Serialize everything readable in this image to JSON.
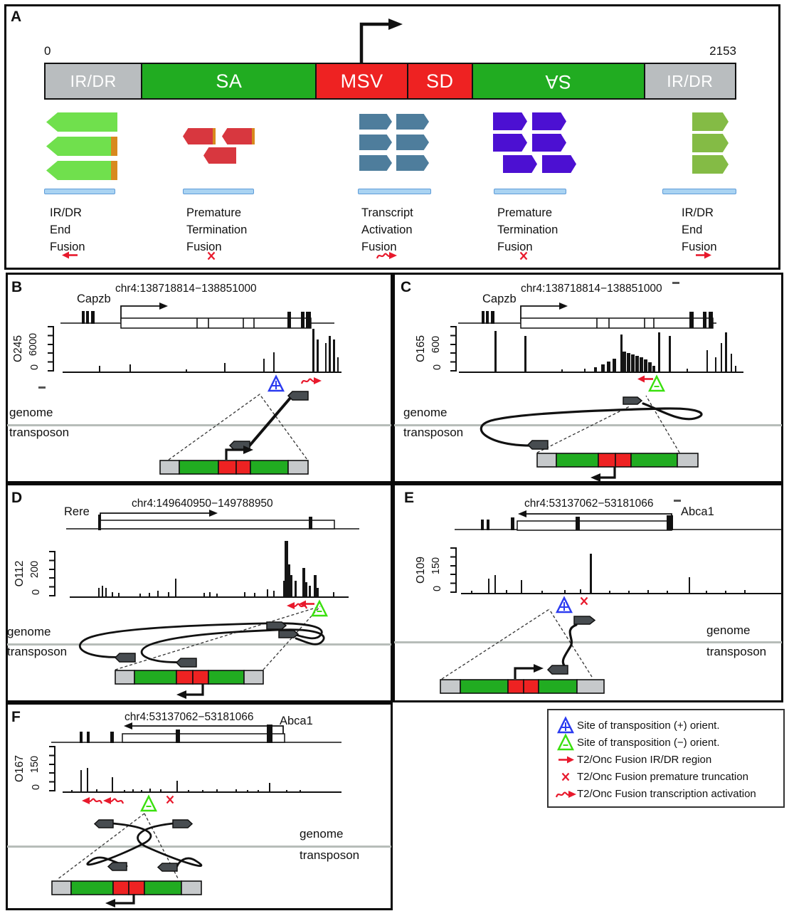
{
  "figure": {
    "panelA": {
      "letter": "A",
      "scale_start": "0",
      "scale_end": "2153",
      "segments": [
        {
          "label": "IR/DR",
          "color": "gray",
          "reversed": false
        },
        {
          "label": "SA",
          "color": "green",
          "reversed": false
        },
        {
          "label": "MSV",
          "color": "red",
          "reversed": false
        },
        {
          "label": "SD",
          "color": "red",
          "reversed": false
        },
        {
          "label": "SA",
          "color": "green",
          "reversed": true
        },
        {
          "label": "IR/DR",
          "color": "gray",
          "reversed": false
        }
      ],
      "groups": [
        {
          "name": "irdr-end-fusion-left",
          "arrow_color": "#70e04d",
          "dir": "left",
          "rows": [
            [
              {
                "edge": false
              }
            ],
            [
              {
                "edge": true
              }
            ],
            [
              {
                "edge": true
              }
            ]
          ],
          "label_lines": [
            "IR/DR",
            "End",
            "Fusion"
          ],
          "symbol": "arrow_left"
        },
        {
          "name": "premature-termination-fusion-left",
          "arrow_color": "#d8373f",
          "dir": "left",
          "rows": [
            [
              {
                "edge": true
              },
              {
                "edge": true
              }
            ],
            [
              {
                "edge": false
              }
            ]
          ],
          "label_lines": [
            "Premature",
            "Termination",
            "Fusion"
          ],
          "symbol": "x"
        },
        {
          "name": "transcript-activation-fusion",
          "arrow_color": "#4e7d9c",
          "dir": "right",
          "rows": [
            [
              {
                "edge": false
              },
              {
                "edge": false
              }
            ],
            [
              {
                "edge": false
              },
              {
                "edge": false
              }
            ],
            [
              {
                "edge": false
              },
              {
                "edge": false
              }
            ]
          ],
          "label_lines": [
            "Transcript",
            "Activation",
            "Fusion"
          ],
          "symbol": "squig_right"
        },
        {
          "name": "premature-termination-fusion-right",
          "arrow_color": "#4c10d2",
          "dir": "right",
          "rows": [
            [
              {
                "edge": false
              },
              {
                "edge": false
              }
            ],
            [
              {
                "edge": false
              },
              {
                "edge": false
              }
            ],
            [
              {
                "edge": false
              },
              {
                "edge": false
              }
            ]
          ],
          "label_lines": [
            "Premature",
            "Termination",
            "Fusion"
          ],
          "symbol": "x"
        },
        {
          "name": "irdr-end-fusion-right",
          "arrow_color": "#84bb45",
          "dir": "right",
          "rows": [
            [
              {
                "edge": false
              }
            ],
            [
              {
                "edge": false
              }
            ],
            [
              {
                "edge": false
              }
            ]
          ],
          "label_lines": [
            "IR/DR",
            "End",
            "Fusion"
          ],
          "symbol": "arrow_right"
        }
      ]
    },
    "panels": [
      {
        "letter": "B",
        "gene": "Capzb",
        "coords": "chr4:138718814−138851000",
        "sample": "O245",
        "y_max": "6000",
        "y_min": "0",
        "genome_label": "genome",
        "transposon_label": "transposon",
        "peaks": [
          [
            0.13,
            8
          ],
          [
            0.24,
            10
          ],
          [
            0.44,
            3
          ],
          [
            0.58,
            12
          ],
          [
            0.72,
            18
          ],
          [
            0.755,
            27
          ],
          [
            0.896,
            60,
            3
          ],
          [
            0.91,
            45,
            3
          ],
          [
            0.94,
            40,
            2
          ],
          [
            0.955,
            50,
            3
          ],
          [
            0.968,
            45,
            3
          ],
          [
            0.985,
            20,
            2
          ]
        ],
        "markers": [
          {
            "type": "tri_plus",
            "x": 0.77
          },
          {
            "type": "squig_right",
            "x": 0.888
          }
        ]
      },
      {
        "letter": "C",
        "gene": "Capzb",
        "coords": "chr4:138718814−138851000",
        "sample": "O165",
        "y_max": "600",
        "y_min": "0",
        "genome_label": "genome",
        "transposon_label": "transposon",
        "peaks": [
          [
            0.124,
            57,
            3
          ],
          [
            0.23,
            50,
            3
          ],
          [
            0.36,
            3
          ],
          [
            0.44,
            4
          ],
          [
            0.475,
            6,
            4
          ],
          [
            0.5,
            10,
            5
          ],
          [
            0.52,
            14,
            5
          ],
          [
            0.54,
            18,
            5
          ],
          [
            0.5675,
            52,
            3
          ],
          [
            0.575,
            28,
            5
          ],
          [
            0.59,
            26,
            5
          ],
          [
            0.605,
            24,
            5
          ],
          [
            0.62,
            22,
            5
          ],
          [
            0.635,
            20,
            5
          ],
          [
            0.65,
            17,
            5
          ],
          [
            0.665,
            13,
            5
          ],
          [
            0.68,
            8,
            4
          ],
          [
            0.7,
            55,
            3
          ],
          [
            0.7375,
            50,
            3
          ],
          [
            0.8,
            4
          ],
          [
            0.87,
            30,
            2
          ],
          [
            0.9,
            20,
            2
          ],
          [
            0.92,
            40,
            2
          ],
          [
            0.935,
            55,
            3
          ],
          [
            0.955,
            25,
            2
          ],
          [
            0.97,
            8,
            2
          ]
        ],
        "markers": [
          {
            "type": "arrow_left",
            "x": 0.66
          },
          {
            "type": "tri_minus",
            "x": 0.7
          }
        ]
      },
      {
        "letter": "D",
        "gene": "Rere",
        "coords": "chr4:149640950−149788950",
        "sample": "O112",
        "y_max": "200",
        "y_min": "0",
        "genome_label": "genome",
        "transposon_label": "transposon",
        "peaks": [
          [
            0.102,
            12
          ],
          [
            0.115,
            15
          ],
          [
            0.128,
            12
          ],
          [
            0.15,
            6
          ],
          [
            0.174,
            5
          ],
          [
            0.25,
            4
          ],
          [
            0.283,
            5
          ],
          [
            0.314,
            8
          ],
          [
            0.352,
            6
          ],
          [
            0.378,
            25
          ],
          [
            0.48,
            5
          ],
          [
            0.5,
            6
          ],
          [
            0.525,
            4
          ],
          [
            0.625,
            6
          ],
          [
            0.66,
            5
          ],
          [
            0.707,
            10
          ],
          [
            0.73,
            8
          ],
          [
            0.765,
            22,
            4
          ],
          [
            0.77,
            78,
            5
          ],
          [
            0.78,
            45,
            4
          ],
          [
            0.79,
            30,
            3
          ],
          [
            0.806,
            22,
            3
          ],
          [
            0.834,
            40,
            4
          ],
          [
            0.845,
            20,
            3
          ],
          [
            0.857,
            15,
            3
          ],
          [
            0.875,
            30,
            4
          ],
          [
            0.885,
            12,
            3
          ],
          [
            0.944,
            6
          ]
        ],
        "markers": [
          {
            "type": "squig_left",
            "x": 0.81
          },
          {
            "type": "arrow_left",
            "x": 0.855
          },
          {
            "type": "tri_minus",
            "x": 0.9
          }
        ]
      },
      {
        "letter": "E",
        "gene": "Abca1",
        "coords": "chr4:53137062−53181066",
        "sample": "O109",
        "y_max": "150",
        "y_min": "0",
        "genome_label": "genome",
        "transposon_label": "transposon",
        "peaks": [
          [
            0.03,
            3
          ],
          [
            0.084,
            20
          ],
          [
            0.104,
            25
          ],
          [
            0.14,
            4
          ],
          [
            0.186,
            18
          ],
          [
            0.25,
            3
          ],
          [
            0.32,
            4
          ],
          [
            0.37,
            5
          ],
          [
            0.4,
            55,
            3
          ],
          [
            0.46,
            3
          ],
          [
            0.52,
            3
          ],
          [
            0.58,
            4
          ],
          [
            0.64,
            3
          ],
          [
            0.708,
            22
          ],
          [
            0.76,
            3
          ],
          [
            0.82,
            3
          ],
          [
            0.88,
            4
          ]
        ],
        "markers": [
          {
            "type": "tri_plus",
            "x": 0.325
          },
          {
            "type": "x",
            "x": 0.398
          }
        ]
      },
      {
        "letter": "F",
        "gene": "Abca1",
        "coords": "chr4:53137062−53181066",
        "sample": "O167",
        "y_max": "150",
        "y_min": "0",
        "genome_label": "genome",
        "transposon_label": "transposon",
        "peaks": [
          [
            0.03,
            2
          ],
          [
            0.064,
            30
          ],
          [
            0.087,
            33
          ],
          [
            0.12,
            3
          ],
          [
            0.176,
            20
          ],
          [
            0.22,
            2
          ],
          [
            0.25,
            3
          ],
          [
            0.28,
            2
          ],
          [
            0.31,
            4
          ],
          [
            0.35,
            3
          ],
          [
            0.408,
            15
          ],
          [
            0.45,
            2
          ],
          [
            0.5,
            2
          ],
          [
            0.55,
            3
          ],
          [
            0.62,
            3
          ],
          [
            0.66,
            2
          ],
          [
            0.7,
            2
          ],
          [
            0.74,
            12
          ],
          [
            0.8,
            2
          ],
          [
            0.85,
            2
          ]
        ],
        "markers": [
          {
            "type": "squig_left",
            "x": 0.102
          },
          {
            "type": "squig_left",
            "x": 0.179
          },
          {
            "type": "tri_minus",
            "x": 0.314
          },
          {
            "type": "x",
            "x": 0.403
          }
        ]
      }
    ],
    "legend": {
      "items": [
        {
          "icon": "tri_plus",
          "text": "Site of transposition (+) orient."
        },
        {
          "icon": "tri_minus",
          "text": "Site of transposition (−) orient."
        },
        {
          "icon": "arrow_right",
          "text": "T2/Onc Fusion IR/DR region"
        },
        {
          "icon": "x",
          "text": "T2/Onc Fusion premature truncation"
        },
        {
          "icon": "squig_right",
          "text": "T2/Onc Fusion transcription activation"
        }
      ]
    }
  }
}
